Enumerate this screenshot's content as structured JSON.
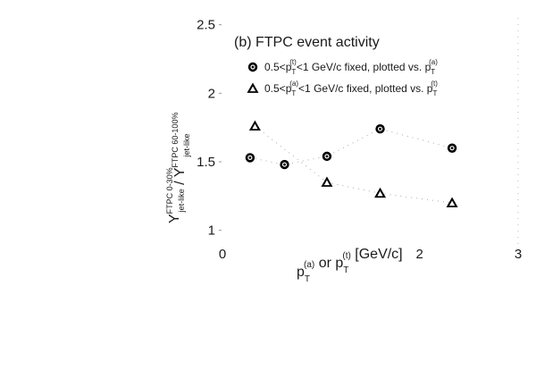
{
  "chart_data": {
    "type": "scatter",
    "title": "(b) FTPC event activity",
    "xlabel": {
      "parts": [
        {
          "t": "p",
          "sub": "T",
          "sup": "(a)"
        },
        {
          "t": " or p",
          "sub": "T",
          "sup": "(t)"
        },
        {
          "t": "  [GeV/c]"
        }
      ]
    },
    "ylabel": {
      "parts": [
        {
          "t": "Y",
          "sub": "jet-like",
          "sup": "FTPC 0-30%"
        },
        {
          "t": " / "
        },
        {
          "t": "Y",
          "sub": "jet-like",
          "sup": "FTPC 60-100%"
        }
      ]
    },
    "xlim": [
      0,
      3
    ],
    "ylim": [
      0.9,
      2.55
    ],
    "xticks": [
      {
        "v": 0,
        "label": "0"
      },
      {
        "v": 2,
        "label": "2"
      },
      {
        "v": 3,
        "label": "3"
      }
    ],
    "yticks": [
      {
        "v": 1,
        "label": "1"
      },
      {
        "v": 1.5,
        "label": "1.5"
      },
      {
        "v": 2,
        "label": "2"
      },
      {
        "v": 2.5,
        "label": "2.5"
      }
    ],
    "grid": false,
    "legend": "top",
    "series": [
      {
        "marker": "circle",
        "color": "#000000",
        "legend": {
          "pre": "0.5<p",
          "sub": "T",
          "sup": "(t)",
          "mid": "<1 GeV/c fixed, plotted vs. p",
          "sub2": "T",
          "sup2": "(a)"
        },
        "points": [
          {
            "x": 0.28,
            "y": 1.53
          },
          {
            "x": 0.63,
            "y": 1.48
          },
          {
            "x": 1.06,
            "y": 1.54
          },
          {
            "x": 1.6,
            "y": 1.74
          },
          {
            "x": 2.33,
            "y": 1.6
          }
        ]
      },
      {
        "marker": "triangle",
        "color": "#000000",
        "legend": {
          "pre": "0.5<p",
          "sub": "T",
          "sup": "(a)",
          "mid": "<1 GeV/c fixed, plotted vs. p",
          "sub2": "T",
          "sup2": "(t)"
        },
        "points": [
          {
            "x": 0.33,
            "y": 1.76
          },
          {
            "x": 1.06,
            "y": 1.35
          },
          {
            "x": 1.6,
            "y": 1.27
          },
          {
            "x": 2.33,
            "y": 1.2
          }
        ]
      }
    ]
  }
}
